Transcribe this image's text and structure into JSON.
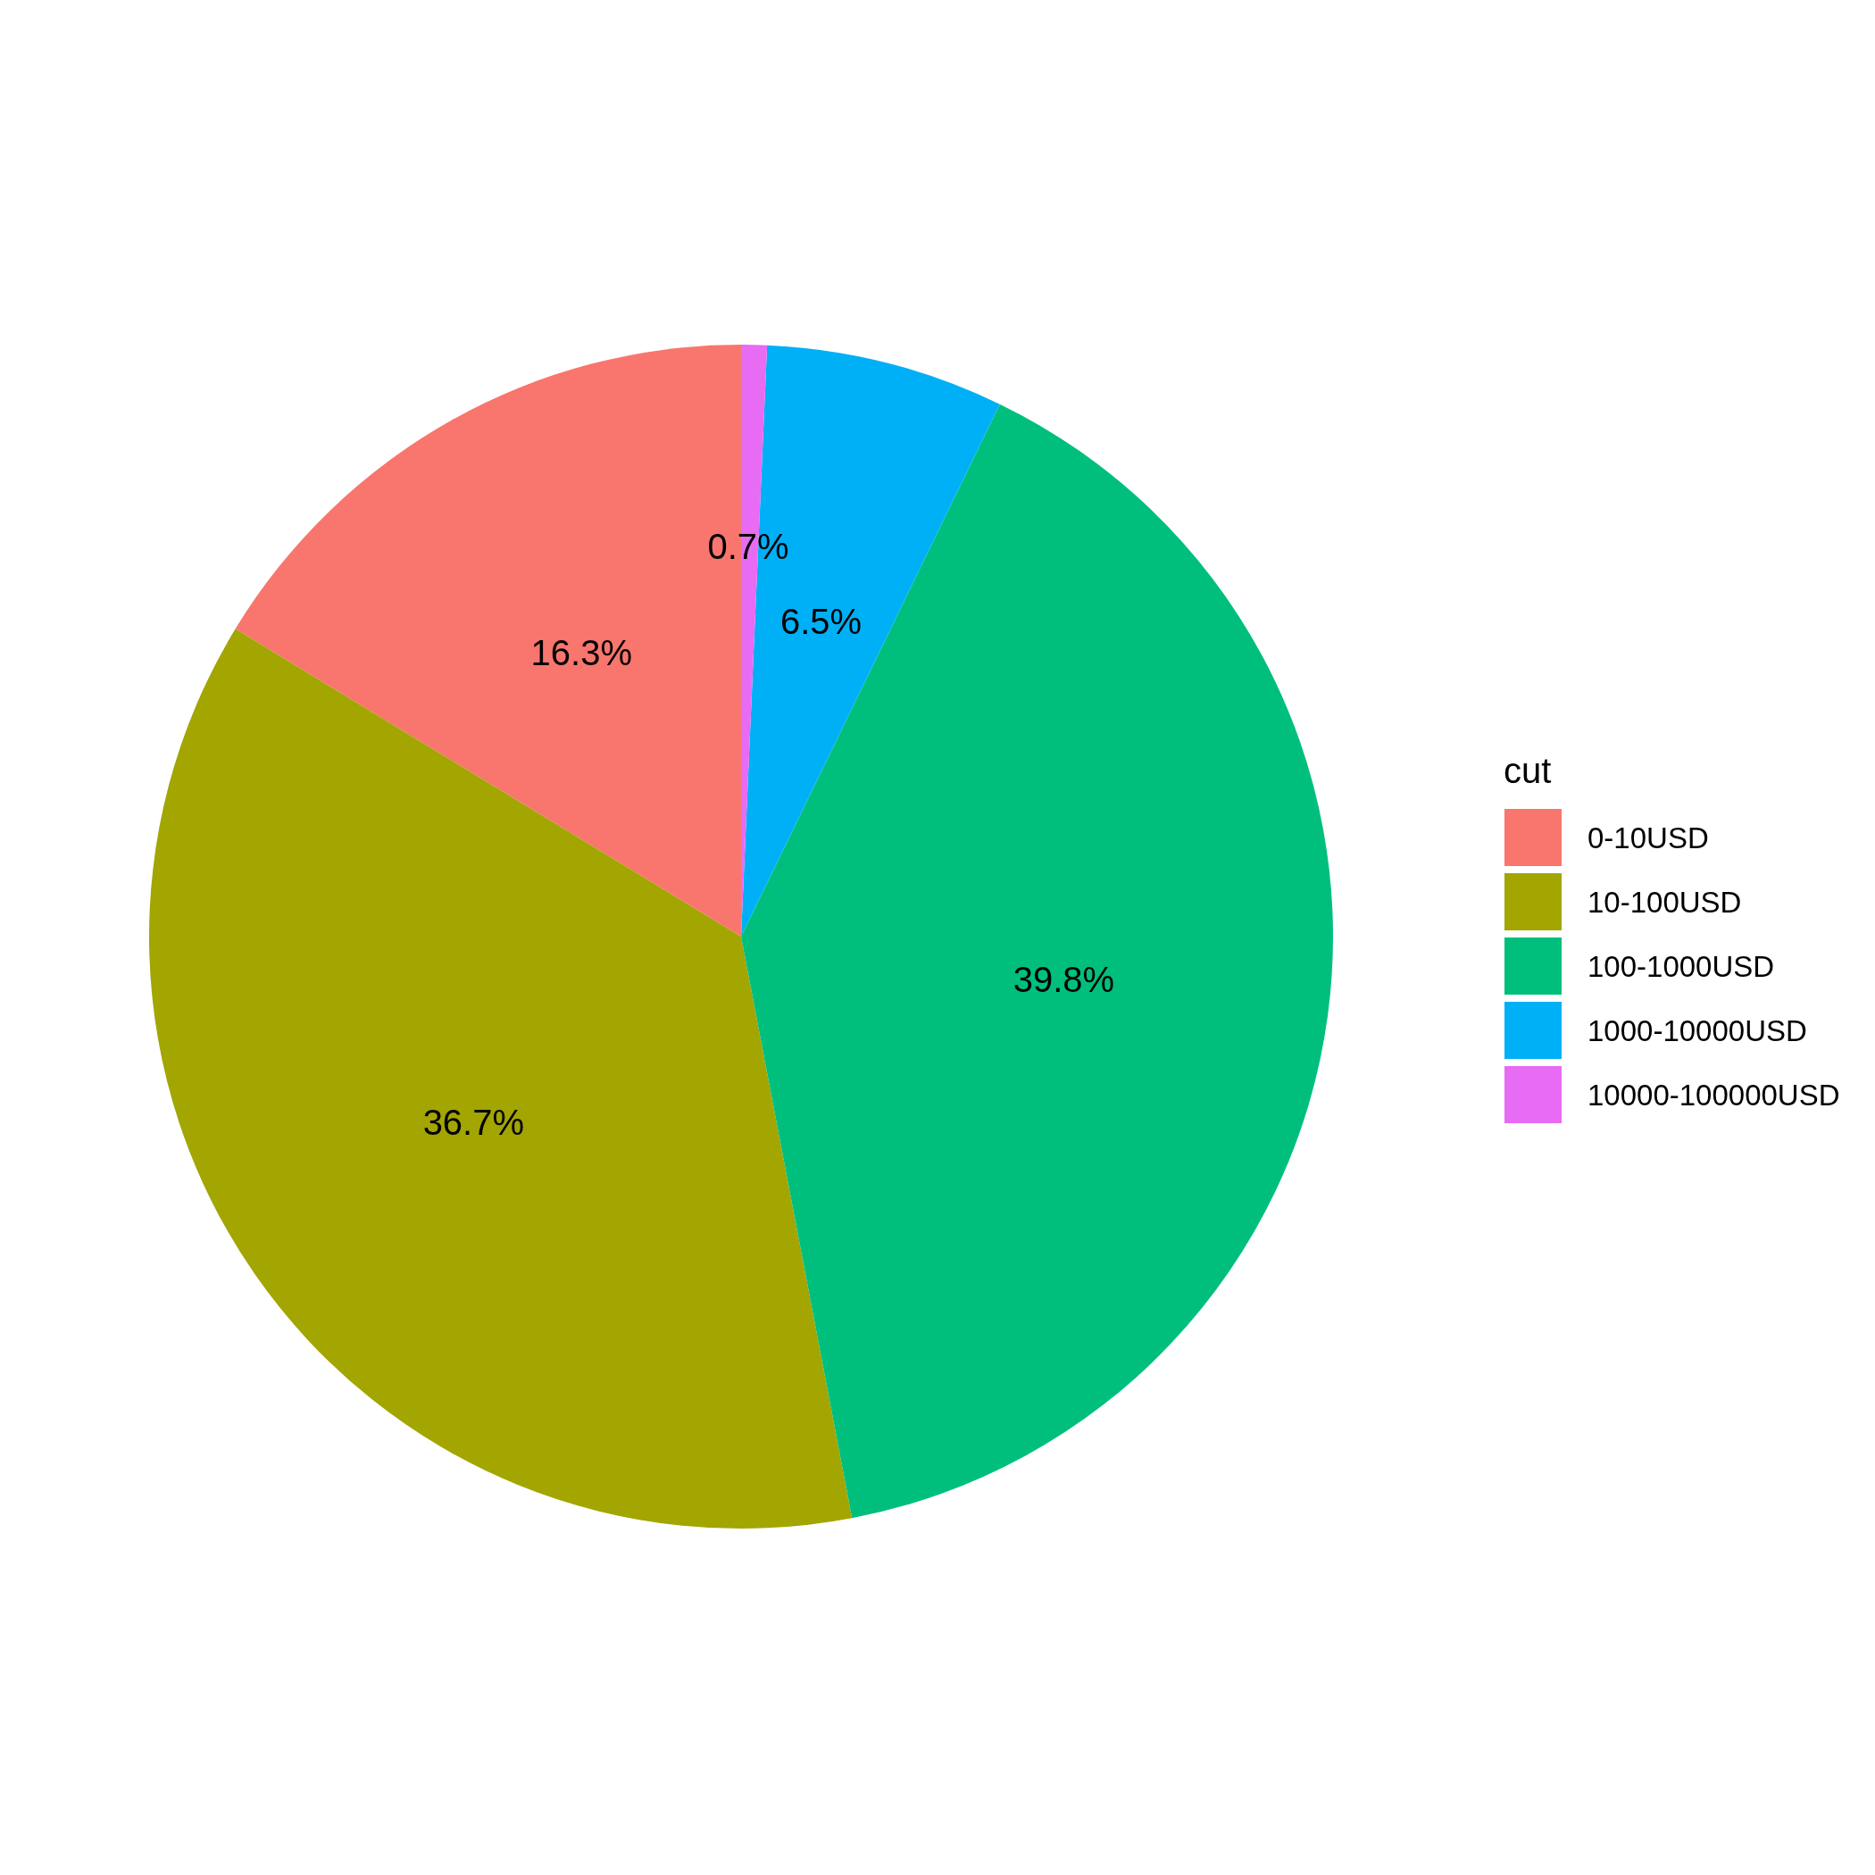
{
  "chart_data": {
    "type": "pie",
    "legend_title": "cut",
    "legend": "right",
    "categories": [
      "0-10USD",
      "10-100USD",
      "100-1000USD",
      "1000-10000USD",
      "10000-100000USD"
    ],
    "values": [
      16.3,
      36.7,
      39.8,
      6.5,
      0.7
    ],
    "value_labels": [
      "16.3%",
      "36.7%",
      "39.8%",
      "6.5%",
      "0.7%"
    ],
    "colors": [
      "#f8766d",
      "#a3a500",
      "#00bf7d",
      "#00b0f6",
      "#e76bf3"
    ]
  }
}
